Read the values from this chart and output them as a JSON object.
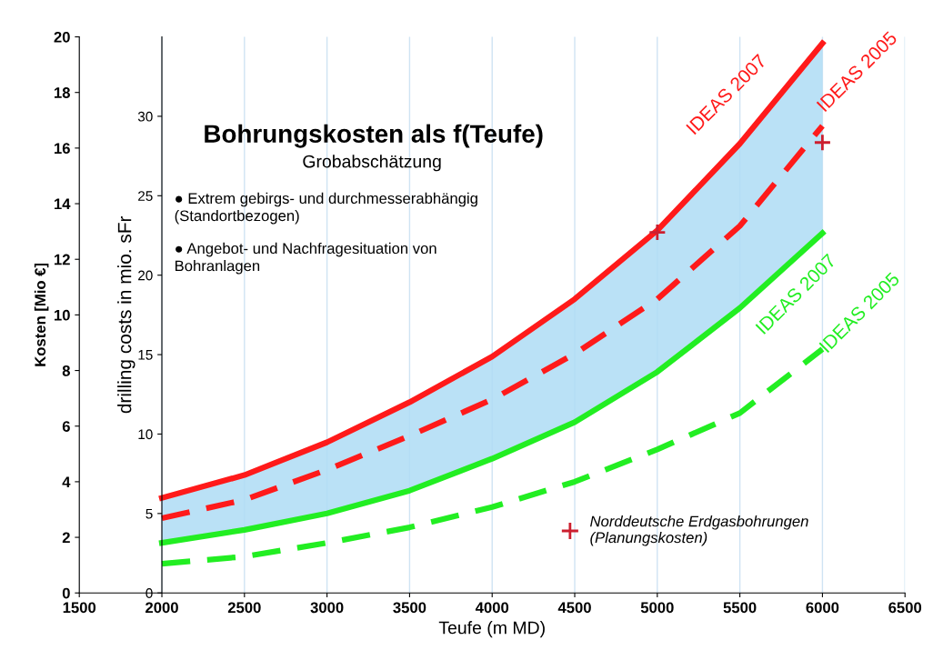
{
  "chart_data": {
    "type": "line",
    "title": "Bohrungskosten als f(Teufe)",
    "subtitle": "Grobabschätzung",
    "xlabel": "Teufe (m MD)",
    "ylabel": "Kosten [Mio €]",
    "y2label": "drilling costs in mio. sFr",
    "annotations": [
      "● Extrem gebirgs- und durchmesserabhängig\n(Standortbezogen)",
      "● Angebot- und Nachfragesituation von\nBohranlagen"
    ],
    "x": [
      2000,
      2500,
      3000,
      3500,
      4000,
      4500,
      5000,
      5500,
      6000
    ],
    "series": [
      {
        "name": "IDEAS 2007",
        "color": "#ff1a1a",
        "line_style": "solid",
        "values": [
          3.42,
          4.24,
          5.42,
          6.86,
          8.5,
          10.57,
          13.04,
          16.16,
          19.77
        ],
        "lower": [
          1.8,
          2.27,
          2.86,
          3.68,
          4.83,
          6.14,
          7.95,
          10.25,
          12.94
        ],
        "upper": [
          3.42,
          4.24,
          5.42,
          6.86,
          8.5,
          10.57,
          13.04,
          16.16,
          19.77
        ]
      },
      {
        "name": "IDEAS 2005",
        "color": "#ff1a1a",
        "line_style": "dashed",
        "values": [
          2.69,
          3.35,
          4.43,
          5.65,
          6.96,
          8.6,
          10.57,
          13.2,
          16.8
        ]
      },
      {
        "name": "IDEAS 2007",
        "color": "#22ee22",
        "line_style": "solid",
        "values": [
          1.8,
          2.27,
          2.86,
          3.68,
          4.83,
          6.14,
          7.95,
          10.25,
          12.94
        ]
      },
      {
        "name": "IDEAS 2005",
        "color": "#22ee22",
        "line_style": "dashed",
        "values": [
          1.05,
          1.31,
          1.8,
          2.36,
          3.09,
          4.0,
          5.16,
          6.47,
          8.77
        ]
      },
      {
        "name": "Norddeutsche Erdgasbohrungen\n(Planungskosten)",
        "type": "scatter",
        "marker": "cross",
        "color": "#cc1f2f",
        "x": [
          5000,
          6000
        ],
        "values": [
          12.97,
          16.2
        ]
      }
    ],
    "xlim": [
      1500,
      6500
    ],
    "xticks": [
      1500,
      2000,
      2500,
      3000,
      3500,
      4000,
      4500,
      5000,
      5500,
      6000,
      6500
    ],
    "ylim": [
      0,
      20
    ],
    "yticks": [
      0,
      2,
      4,
      6,
      8,
      10,
      12,
      14,
      16,
      18,
      20
    ],
    "y2lim": [
      0,
      35
    ],
    "y2ticks": [
      0,
      5,
      10,
      15,
      20,
      25,
      30
    ],
    "grid": "x",
    "legend": "bottom right"
  }
}
